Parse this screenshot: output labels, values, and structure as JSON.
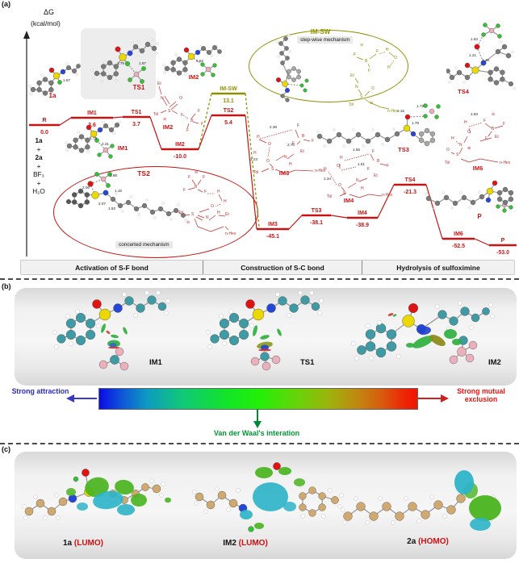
{
  "colors": {
    "profile_red": "#c41414",
    "stepwise_olive": "#8f8f00",
    "attraction_blue": "#2a2ac8",
    "exclusion_red": "#ee1111",
    "vdw_green": "#009933",
    "drawing_red": "#c03030"
  },
  "panel_a": {
    "tag": "(a)",
    "dg": "ΔG",
    "dg_units": "(kcal/mol)",
    "reactants": [
      "1a",
      "+",
      "2a",
      "+",
      "BF₃",
      "+",
      "H₂O"
    ],
    "levels": [
      {
        "name": "R",
        "value": "0.0"
      },
      {
        "name": "IM1",
        "value": "3.6"
      },
      {
        "name": "TS1",
        "value": "3.7"
      },
      {
        "name": "IM2",
        "value": "-10.0"
      },
      {
        "name": "TS2",
        "value": "5.4"
      },
      {
        "name": "IM-SW",
        "value": "13.1"
      },
      {
        "name": "IM3",
        "value": "-45.1"
      },
      {
        "name": "TS3",
        "value": "-38.1"
      },
      {
        "name": "IM4",
        "value": "-38.9"
      },
      {
        "name": "TS4",
        "value": "-21.3"
      },
      {
        "name": "IM6",
        "value": "-52.5"
      },
      {
        "name": "P",
        "value": "-53.0"
      }
    ],
    "struct_labels": [
      "1a",
      "TS1",
      "IM1",
      "IM2",
      "TS2",
      "IM-SW",
      "TS3",
      "TS4",
      "IM6",
      "P",
      "IM2",
      "IM3",
      "IM4"
    ],
    "mechanism_notes": {
      "concerted": "concerted mechanism",
      "stepwise": "step-wise mechanism"
    },
    "distances": {
      "m1a": [
        "1.67"
      ],
      "ts1": [
        "1.79",
        "1.97"
      ],
      "im1": [
        "1.73",
        "2.21"
      ],
      "im2": [
        "2.52"
      ],
      "ts2": [
        "1.88",
        "2.06",
        "2.07",
        "1.15",
        "1.92"
      ],
      "ts3": [
        "2.16",
        "1.72",
        "1.79"
      ],
      "ts4": [
        "1.63",
        "1.21",
        "1.36"
      ],
      "im3d": [
        "2.38",
        "2.70",
        "2.23"
      ],
      "im4d": [
        "1.56",
        "1.61",
        "1.34"
      ],
      "im6d": [
        "1.83"
      ]
    },
    "atom_labels": {
      "tol": "Tol",
      "et": "Et",
      "nhex": "n-Hex",
      "s": "S",
      "n": "N",
      "o": "O",
      "f": "F",
      "b": "B",
      "h": "H",
      "minus": "⊖",
      "plus": "⊕"
    },
    "sections": [
      "Activation of S-F bond",
      "Construction of S-C bond",
      "Hydrolysis of sulfoximine"
    ]
  },
  "panel_b": {
    "tag": "(b)",
    "labels": [
      "IM1",
      "TS1",
      "IM2"
    ],
    "legend": {
      "attraction": "Strong attraction",
      "exclusion": "Strong mutual exclusion",
      "vdw": "Van der Waal's interation"
    }
  },
  "panel_c": {
    "tag": "(c)",
    "items": [
      {
        "mol": "1a",
        "orb": "(LUMO)"
      },
      {
        "mol": "IM2",
        "orb": "(LUMO)"
      },
      {
        "mol": "2a",
        "orb": "(HOMO)"
      }
    ]
  }
}
